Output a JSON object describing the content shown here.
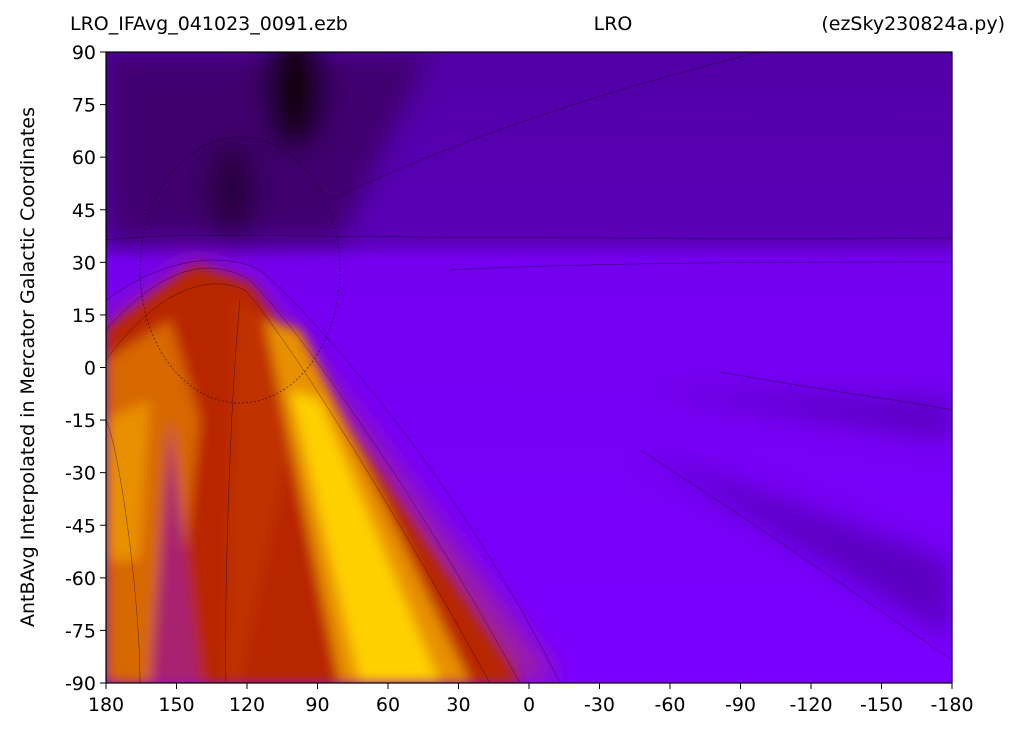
{
  "chart_data": {
    "type": "heatmap",
    "title_left": "LRO_IFAvg_041023_0091.ezb",
    "title_center": "LRO",
    "title_right": "(ezSky230824a.py)",
    "y_label": "AntBAvg Interpolated in Mercator Galactic Coordinates",
    "xlim": [
      180,
      -180
    ],
    "xticks": [
      180,
      150,
      120,
      90,
      60,
      30,
      0,
      -30,
      -60,
      -90,
      -120,
      -150,
      -180
    ],
    "ylim": [
      -90,
      90
    ],
    "yticks": [
      90,
      75,
      60,
      45,
      30,
      15,
      0,
      -15,
      -30,
      -45,
      -60,
      -75,
      -90
    ]
  }
}
